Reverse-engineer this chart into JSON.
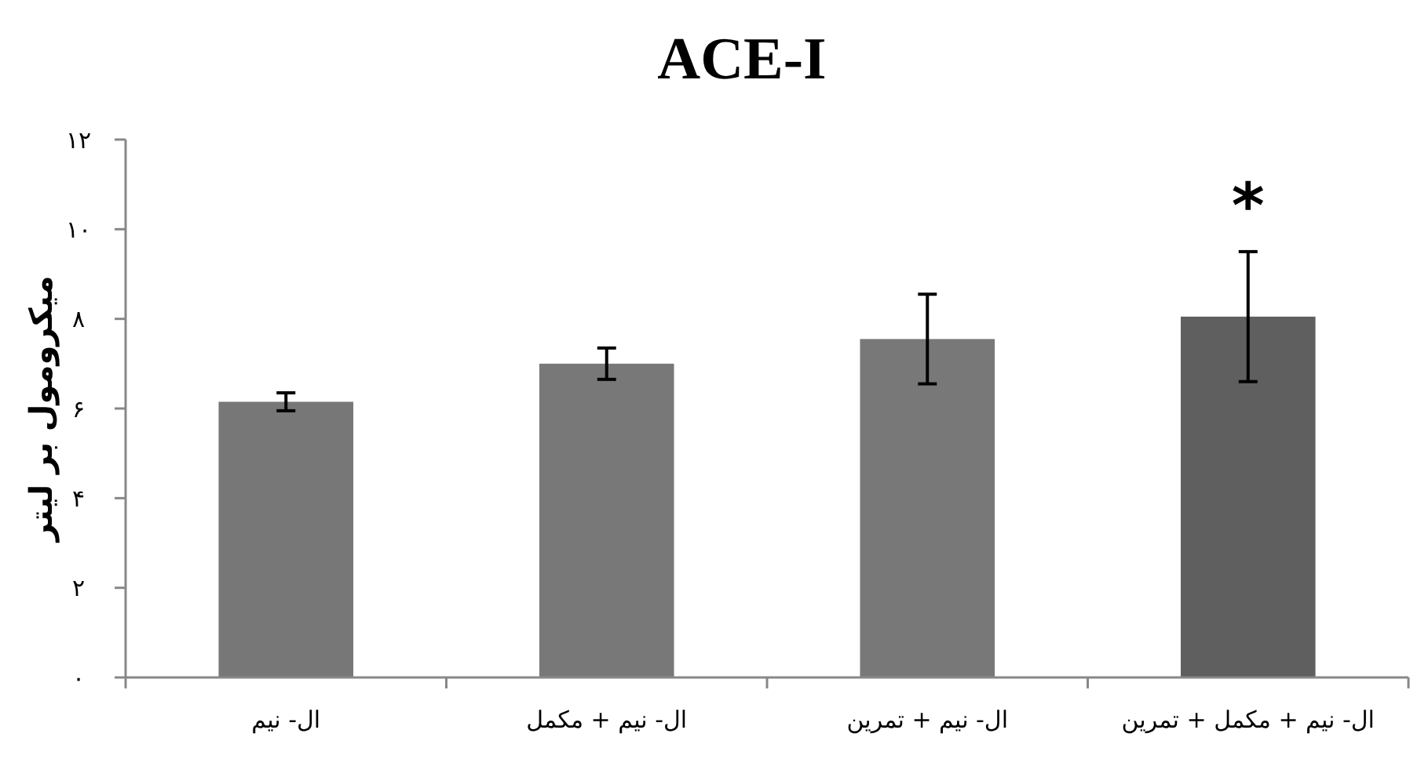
{
  "chart_data": {
    "type": "bar",
    "title": "ACE-I",
    "ylabel": "میکرومول بر لیتر",
    "categories": [
      "ال- نیم",
      "ال- نیم + مکمل",
      "ال- نیم + تمرین",
      "ال- نیم + مکمل + تمرین"
    ],
    "values": [
      6.15,
      7.0,
      7.55,
      8.05
    ],
    "errors": [
      0.2,
      0.35,
      1.0,
      1.45
    ],
    "colors": [
      "#777777",
      "#787878",
      "#787878",
      "#5f5f5f"
    ],
    "ylim": [
      0,
      12
    ],
    "yticks": [
      {
        "value": 0,
        "label": "۰"
      },
      {
        "value": 2,
        "label": "۲"
      },
      {
        "value": 4,
        "label": "۴"
      },
      {
        "value": 6,
        "label": "۶"
      },
      {
        "value": 8,
        "label": "۸"
      },
      {
        "value": 10,
        "label": "۱۰"
      },
      {
        "value": 12,
        "label": "۱۲"
      }
    ],
    "annotations": [
      "*"
    ],
    "grid": false
  }
}
